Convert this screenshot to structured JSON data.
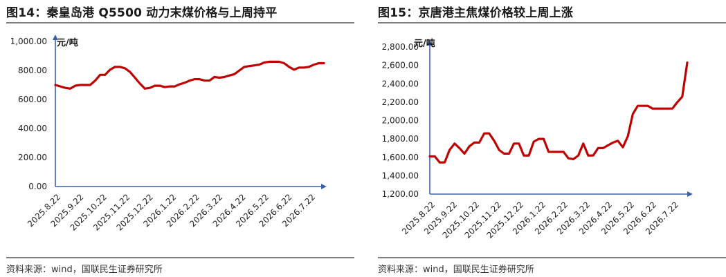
{
  "charts": [
    {
      "title": "图14：秦皇岛港 Q5500 动力末煤价格与上周持平",
      "source": "资料来源：wind，国联民生证券研究所"
    },
    {
      "title": "图15：京唐港主焦煤价格较上周上涨",
      "source": "资料来源：wind，国联民生证券研究所"
    }
  ],
  "chart_data": [
    {
      "type": "line",
      "title": "图14：秦皇岛港 Q5500 动力末煤价格与上周持平",
      "ylabel": "元/吨",
      "xlabel": "",
      "ylim": [
        0,
        1000
      ],
      "yticks": [
        "0.00",
        "200.00",
        "400.00",
        "600.00",
        "800.00",
        "1,000.00"
      ],
      "ytick_values": [
        0,
        200,
        400,
        600,
        800,
        1000
      ],
      "xticks": [
        "2025.8.22",
        "2025.9.22",
        "2025.10.22",
        "2025.11.22",
        "2025.12.22",
        "2026.1.22",
        "2026.2.22",
        "2026.3.22",
        "2026.4.22",
        "2026.5.22",
        "2026.6.22",
        "2026.7.22"
      ],
      "grid": false,
      "color": "#c00000",
      "series": [
        {
          "values": [
            700,
            690,
            680,
            675,
            695,
            700,
            700,
            700,
            730,
            770,
            770,
            805,
            825,
            825,
            815,
            790,
            750,
            710,
            675,
            680,
            695,
            695,
            685,
            690,
            690,
            705,
            715,
            730,
            740,
            740,
            730,
            730,
            755,
            750,
            755,
            765,
            775,
            800,
            825,
            830,
            835,
            840,
            855,
            860,
            860,
            860,
            850,
            825,
            805,
            820,
            820,
            825,
            840,
            850,
            850
          ]
        }
      ]
    },
    {
      "type": "line",
      "title": "图15：京唐港主焦煤价格较上周上涨",
      "ylabel": "元/吨",
      "xlabel": "",
      "ylim": [
        1200,
        2800
      ],
      "yticks": [
        "1,200.00",
        "1,400.00",
        "1,600.00",
        "1,800.00",
        "2,000.00",
        "2,200.00",
        "2,400.00",
        "2,600.00",
        "2,800.00"
      ],
      "ytick_values": [
        1200,
        1400,
        1600,
        1800,
        2000,
        2200,
        2400,
        2600,
        2800
      ],
      "xticks": [
        "2025.8.22",
        "2025.9.22",
        "2025.10.22",
        "2025.11.22",
        "2025.12.22",
        "2026.1.22",
        "2026.2.22",
        "2026.3.22",
        "2026.4.22",
        "2026.5.22",
        "2026.6.22",
        "2026.7.22"
      ],
      "grid": false,
      "color": "#c00000",
      "series": [
        {
          "values": [
            1610,
            1610,
            1545,
            1545,
            1680,
            1750,
            1700,
            1640,
            1720,
            1760,
            1760,
            1860,
            1860,
            1780,
            1680,
            1640,
            1640,
            1750,
            1750,
            1620,
            1620,
            1770,
            1800,
            1800,
            1660,
            1660,
            1660,
            1660,
            1590,
            1580,
            1620,
            1750,
            1620,
            1620,
            1700,
            1700,
            1730,
            1760,
            1780,
            1710,
            1830,
            2070,
            2160,
            2160,
            2160,
            2130,
            2130,
            2130,
            2130,
            2130,
            2200,
            2260,
            2630
          ]
        }
      ]
    }
  ]
}
